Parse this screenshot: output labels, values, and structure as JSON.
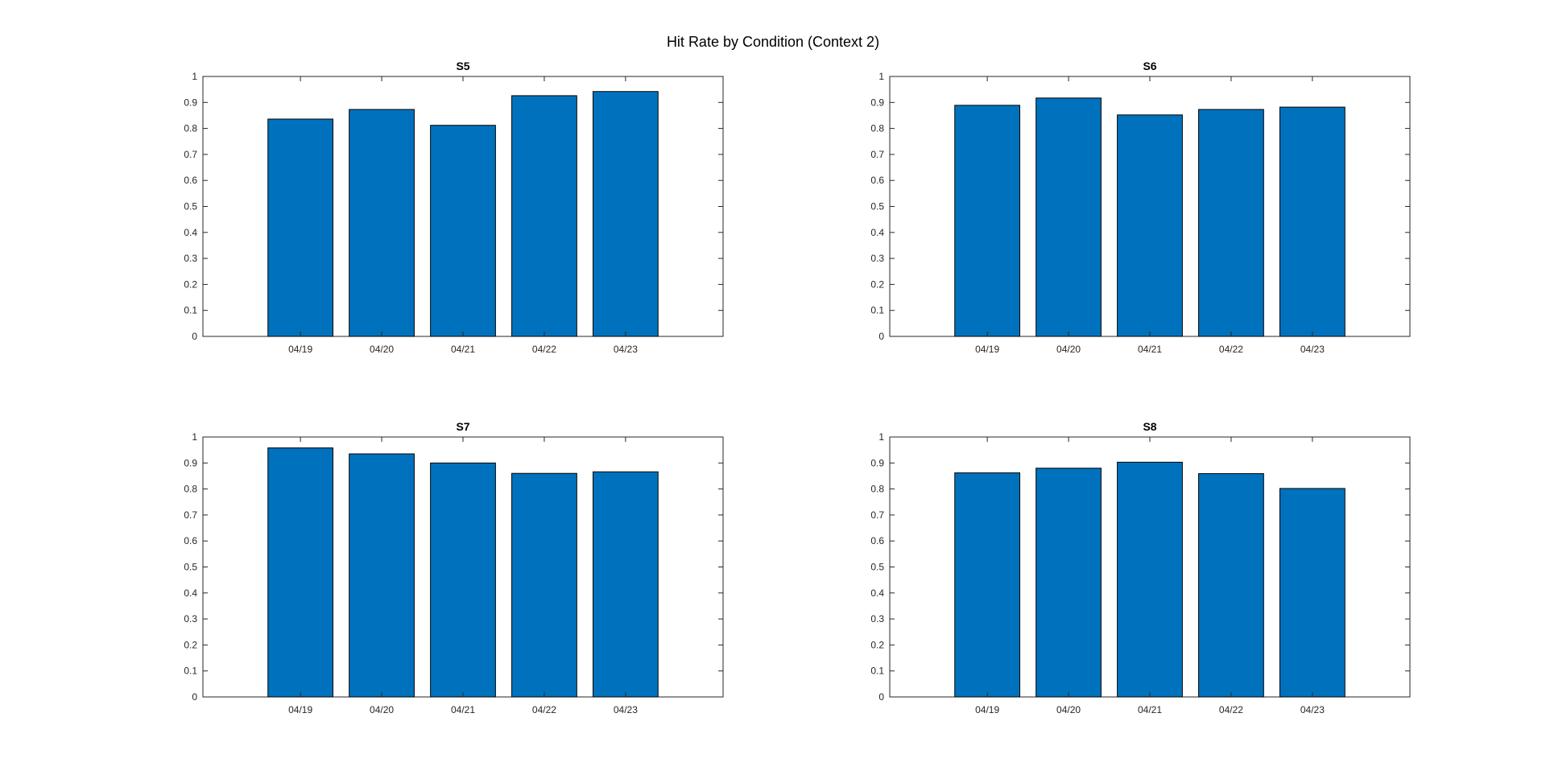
{
  "figure": {
    "title": "Hit Rate by Condition (Context 2)"
  },
  "colors": {
    "bar_fill": "#0072BD",
    "bar_edge": "#000000",
    "axes": "#262626",
    "text": "#262626"
  },
  "chart_data": [
    {
      "type": "bar",
      "title": "S5",
      "categories": [
        "04/19",
        "04/20",
        "04/21",
        "04/22",
        "04/23"
      ],
      "values": [
        0.836,
        0.873,
        0.812,
        0.926,
        0.942
      ],
      "yticks": [
        "0",
        "0.1",
        "0.2",
        "0.3",
        "0.4",
        "0.5",
        "0.6",
        "0.7",
        "0.8",
        "0.9",
        "1"
      ],
      "ylim": [
        0,
        1
      ],
      "xlim": [
        -0.2,
        6.2
      ],
      "grid": false,
      "xlabel": "",
      "ylabel": ""
    },
    {
      "type": "bar",
      "title": "S6",
      "categories": [
        "04/19",
        "04/20",
        "04/21",
        "04/22",
        "04/23"
      ],
      "values": [
        0.889,
        0.917,
        0.852,
        0.873,
        0.882
      ],
      "yticks": [
        "0",
        "0.1",
        "0.2",
        "0.3",
        "0.4",
        "0.5",
        "0.6",
        "0.7",
        "0.8",
        "0.9",
        "1"
      ],
      "ylim": [
        0,
        1
      ],
      "xlim": [
        -0.2,
        6.2
      ],
      "grid": false,
      "xlabel": "",
      "ylabel": ""
    },
    {
      "type": "bar",
      "title": "S7",
      "categories": [
        "04/19",
        "04/20",
        "04/21",
        "04/22",
        "04/23"
      ],
      "values": [
        0.958,
        0.935,
        0.9,
        0.86,
        0.866
      ],
      "yticks": [
        "0",
        "0.1",
        "0.2",
        "0.3",
        "0.4",
        "0.5",
        "0.6",
        "0.7",
        "0.8",
        "0.9",
        "1"
      ],
      "ylim": [
        0,
        1
      ],
      "xlim": [
        -0.2,
        6.2
      ],
      "grid": false,
      "xlabel": "",
      "ylabel": ""
    },
    {
      "type": "bar",
      "title": "S8",
      "categories": [
        "04/19",
        "04/20",
        "04/21",
        "04/22",
        "04/23"
      ],
      "values": [
        0.862,
        0.88,
        0.903,
        0.859,
        0.802
      ],
      "yticks": [
        "0",
        "0.1",
        "0.2",
        "0.3",
        "0.4",
        "0.5",
        "0.6",
        "0.7",
        "0.8",
        "0.9",
        "1"
      ],
      "ylim": [
        0,
        1
      ],
      "xlim": [
        -0.2,
        6.2
      ],
      "grid": false,
      "xlabel": "",
      "ylabel": ""
    }
  ]
}
